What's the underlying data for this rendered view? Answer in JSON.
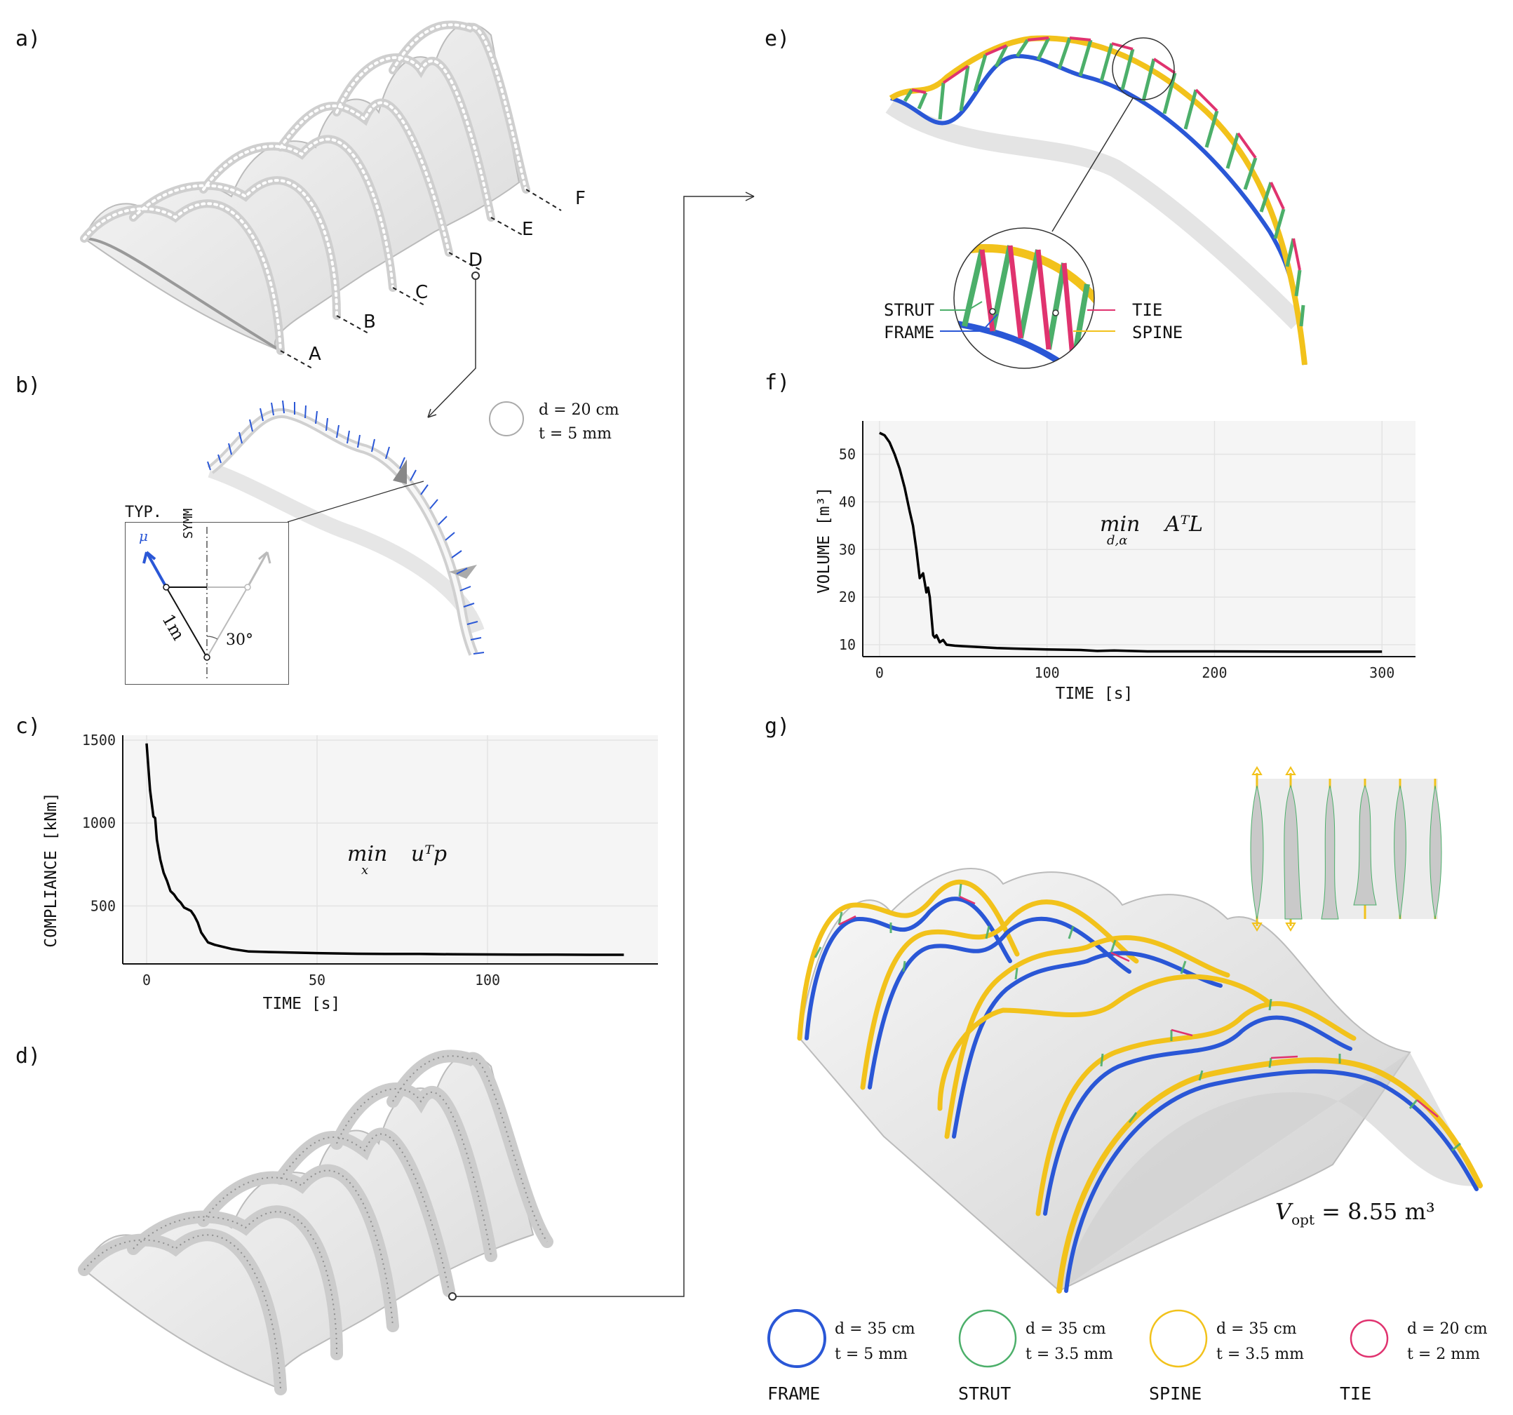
{
  "panels": {
    "a": "a)",
    "b": "b)",
    "c": "c)",
    "d": "d)",
    "e": "e)",
    "f": "f)",
    "g": "g)"
  },
  "panel_a": {
    "section_labels": [
      "A",
      "B",
      "C",
      "D",
      "E",
      "F"
    ]
  },
  "panel_b": {
    "dim_d": "d = 20 cm",
    "dim_t": "t = 5 mm",
    "inset_title": "TYP.",
    "inset_symm": "SYMM",
    "inset_mu": "μ",
    "inset_length": "1m",
    "inset_angle": "30°"
  },
  "panel_c": {
    "objective_op": "min",
    "objective_sub": "x",
    "objective_expr": "uᵀp"
  },
  "panel_e": {
    "callouts": {
      "strut": "STRUT",
      "frame": "FRAME",
      "tie": "TIE",
      "spine": "SPINE"
    }
  },
  "panel_f": {
    "objective_op": "min",
    "objective_sub": "d,α",
    "objective_expr": "AᵀL"
  },
  "panel_g": {
    "v_opt": "V",
    "v_opt_sub": "opt",
    "v_opt_value": "= 8.55 m³"
  },
  "legend": [
    {
      "name": "FRAME",
      "d": "d = 35 cm",
      "t": "t = 5 mm",
      "color": "#2a57d6"
    },
    {
      "name": "STRUT",
      "d": "d = 35 cm",
      "t": "t = 3.5 mm",
      "color": "#4caf6a"
    },
    {
      "name": "SPINE",
      "d": "d = 35 cm",
      "t": "t = 3.5 mm",
      "color": "#f2c21b"
    },
    {
      "name": "TIE",
      "d": "d = 20 cm",
      "t": "t = 2 mm",
      "color": "#e0336f"
    }
  ],
  "colors": {
    "frame": "#2a57d6",
    "strut": "#4caf6a",
    "spine": "#f2c21b",
    "tie": "#e0336f",
    "plot_bg": "#f5f5f5",
    "line": "#000000"
  },
  "chart_data": [
    {
      "type": "line",
      "xlabel": "TIME [s]",
      "ylabel": "COMPLIANCE [kNm]",
      "x_ticks": [
        "0",
        "50",
        "100"
      ],
      "y_ticks": [
        "500",
        "1000",
        "1500"
      ],
      "xlim": [
        -7,
        150
      ],
      "ylim": [
        150,
        1530
      ],
      "grid": true,
      "series": [
        {
          "x": [
            0,
            1,
            2,
            2.5,
            3,
            4,
            5,
            6,
            7,
            8,
            9,
            10,
            11,
            12,
            13,
            14,
            15,
            16,
            18,
            20,
            25,
            30,
            40,
            50,
            60,
            70,
            80,
            90,
            100,
            110,
            120,
            130,
            140
          ],
          "y": [
            1480,
            1200,
            1040,
            1030,
            900,
            780,
            700,
            650,
            590,
            570,
            540,
            520,
            490,
            480,
            470,
            440,
            400,
            340,
            280,
            265,
            240,
            225,
            220,
            215,
            212,
            210,
            210,
            208,
            207,
            206,
            206,
            205,
            205
          ]
        }
      ]
    },
    {
      "type": "line",
      "xlabel": "TIME [s]",
      "ylabel": "VOLUME [m³]",
      "x_ticks": [
        "0",
        "100",
        "200",
        "300"
      ],
      "y_ticks": [
        "10",
        "20",
        "30",
        "40",
        "50"
      ],
      "xlim": [
        -10,
        320
      ],
      "ylim": [
        7.5,
        57
      ],
      "grid": true,
      "series": [
        {
          "x": [
            0,
            3,
            6,
            9,
            12,
            15,
            18,
            20,
            22,
            24,
            26,
            27,
            28,
            29,
            30,
            31,
            32,
            33,
            34,
            36,
            38,
            40,
            45,
            50,
            60,
            70,
            80,
            100,
            120,
            130,
            140,
            160,
            200,
            250,
            300
          ],
          "y": [
            54.5,
            54,
            52.5,
            50,
            47,
            43,
            38,
            35,
            30,
            24,
            25,
            23,
            21,
            22,
            20,
            16,
            12,
            11.5,
            12,
            10.5,
            11,
            10,
            9.8,
            9.7,
            9.5,
            9.3,
            9.2,
            9.0,
            8.9,
            8.7,
            8.8,
            8.6,
            8.6,
            8.55,
            8.55
          ]
        }
      ]
    }
  ]
}
